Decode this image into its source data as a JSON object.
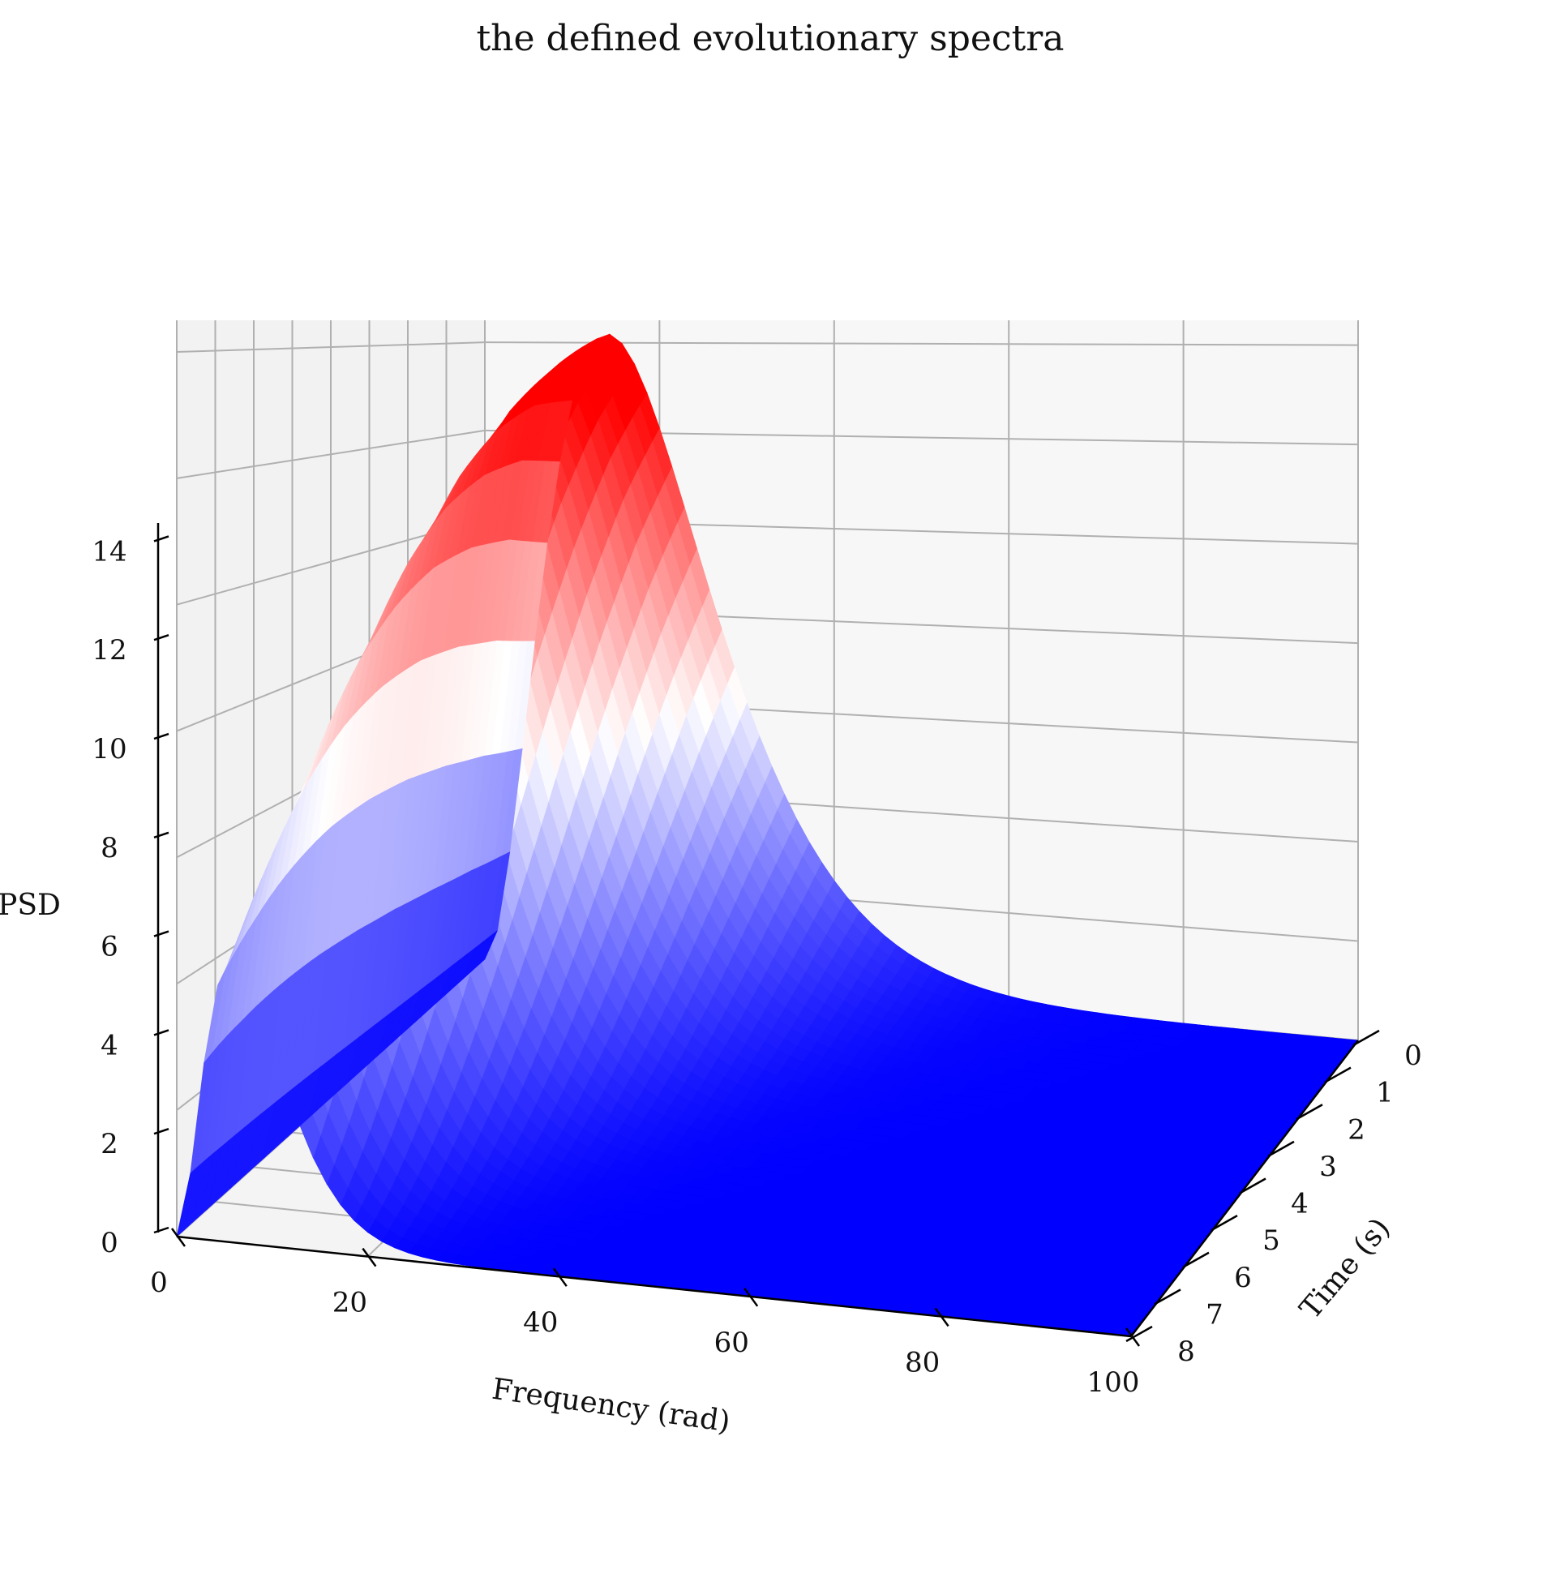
{
  "chart_data": {
    "type": "surface3d",
    "title": "the defined evolutionary spectra",
    "xlabel": "Frequency (rad)",
    "ylabel": "Time (s)",
    "zlabel": "PSD",
    "xlim": [
      0,
      100
    ],
    "ylim": [
      0,
      8
    ],
    "zlim": [
      0,
      14.5
    ],
    "xticks": [
      "0",
      "20",
      "40",
      "60",
      "80",
      "100"
    ],
    "yticks": [
      "0",
      "1",
      "2",
      "3",
      "4",
      "5",
      "6",
      "7",
      "8"
    ],
    "zticks": [
      "0",
      "2",
      "4",
      "6",
      "8",
      "10",
      "12",
      "14"
    ],
    "grid": true,
    "colormap": "bwr",
    "colors": {
      "low": "#0000ff",
      "mid": "#ffffff",
      "high": "#ff0000",
      "pane": "#f2f2f2",
      "grid": "#b0b0b0"
    },
    "description_series": [
      {
        "time_s": 0,
        "peak_frequency_rad": 14,
        "peak_psd": 14.2
      },
      {
        "time_s": 1,
        "peak_frequency_rad": 13,
        "peak_psd": 13.6
      },
      {
        "time_s": 2,
        "peak_frequency_rad": 12,
        "peak_psd": 12.7
      },
      {
        "time_s": 3,
        "peak_frequency_rad": 11,
        "peak_psd": 11.6
      },
      {
        "time_s": 4,
        "peak_frequency_rad": 10,
        "peak_psd": 10.3
      },
      {
        "time_s": 5,
        "peak_frequency_rad": 9,
        "peak_psd": 8.9
      },
      {
        "time_s": 6,
        "peak_frequency_rad": 8,
        "peak_psd": 7.4
      },
      {
        "time_s": 7,
        "peak_frequency_rad": 7,
        "peak_psd": 5.9
      },
      {
        "time_s": 8,
        "peak_frequency_rad": 6,
        "peak_psd": 4.5
      }
    ]
  }
}
